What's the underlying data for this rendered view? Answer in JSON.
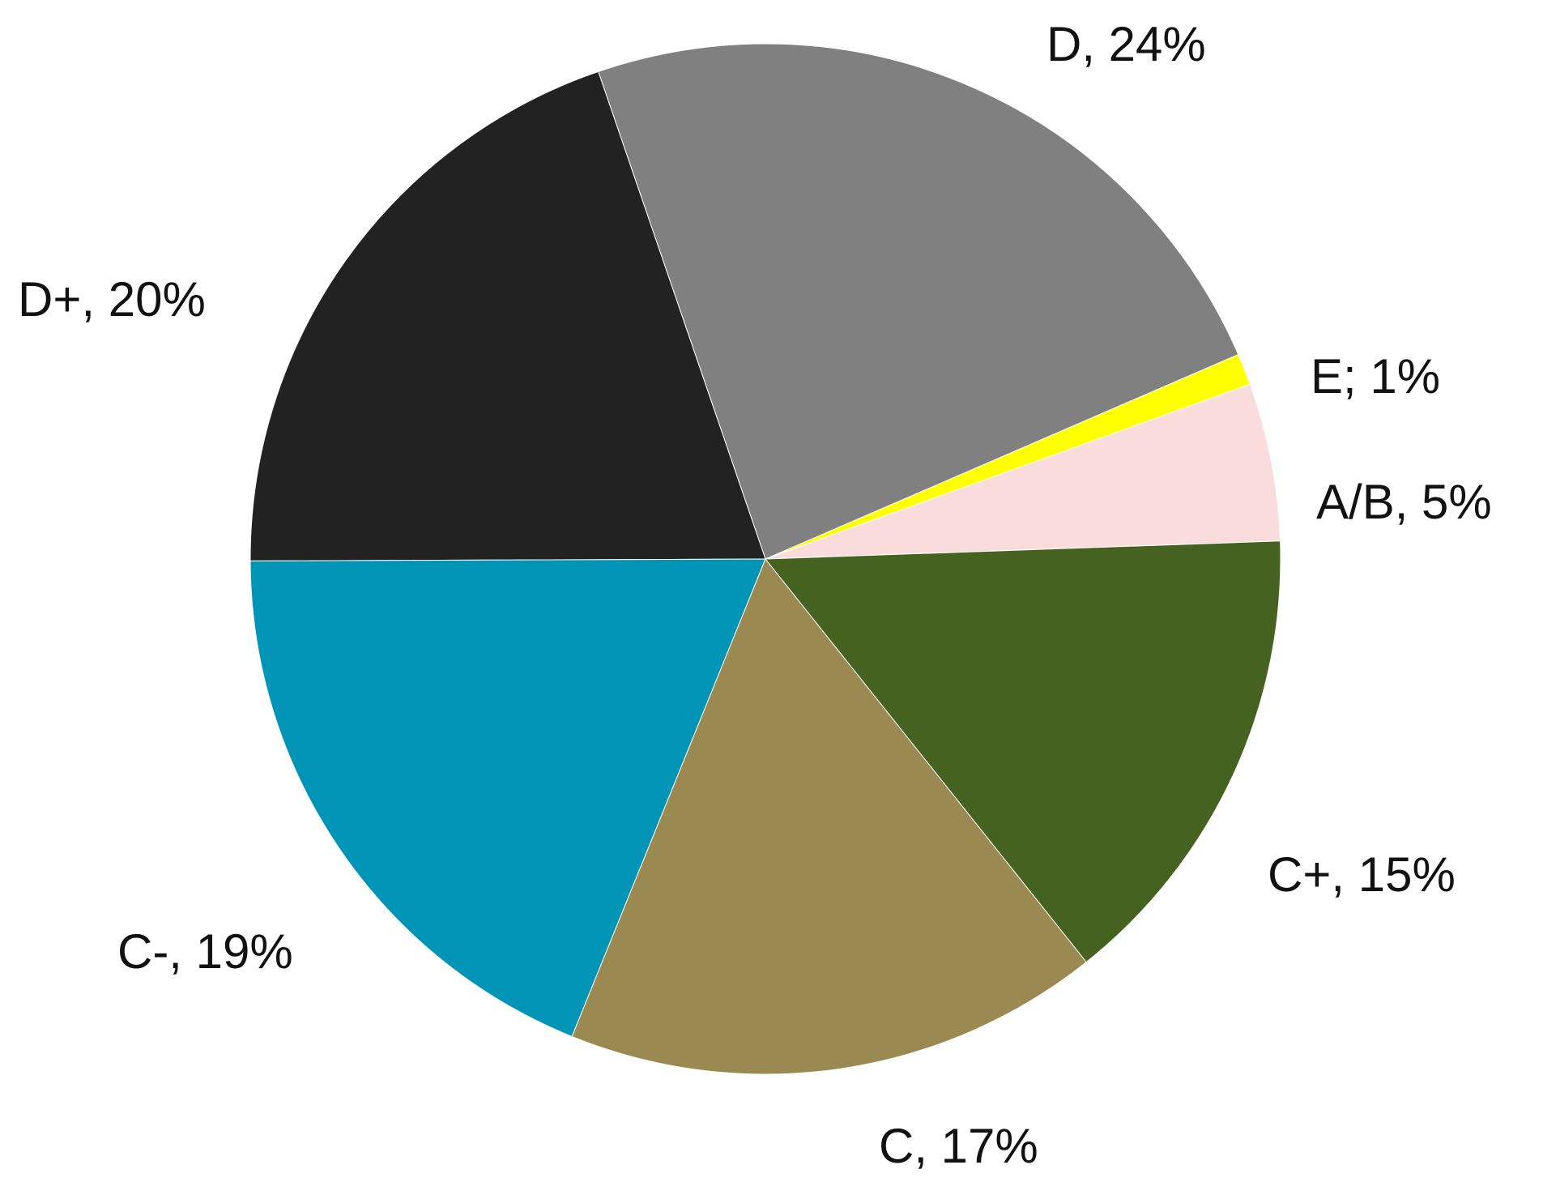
{
  "chart_data": {
    "type": "pie",
    "title": "",
    "unit": "%",
    "slices": [
      {
        "name": "A/B",
        "value": 5,
        "label": "A/B, 5%",
        "color": "#fadcdc"
      },
      {
        "name": "E",
        "value": 1,
        "label": "E; 1%",
        "color": "#ffff00"
      },
      {
        "name": "D",
        "value": 24,
        "label": "D, 24%",
        "color": "#808080"
      },
      {
        "name": "D+",
        "value": 20,
        "label": "D+, 20%",
        "color": "#222222"
      },
      {
        "name": "C-",
        "value": 19,
        "label": "C-, 19%",
        "color": "#0094b6"
      },
      {
        "name": "C",
        "value": 17,
        "label": "C, 17%",
        "color": "#9a8a52"
      },
      {
        "name": "C+",
        "value": 15,
        "label": "C+, 15%",
        "color": "#466220"
      }
    ],
    "start_angle_deg": 2,
    "direction": "counterclockwise",
    "legend": "none"
  }
}
